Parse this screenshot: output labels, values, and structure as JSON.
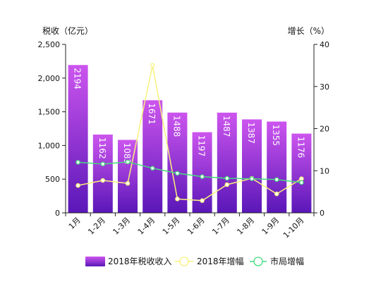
{
  "chart_data": {
    "type": "bar",
    "categories": [
      "1月",
      "1-2月",
      "1-3月",
      "1-4月",
      "1-5月",
      "1-6月",
      "1-7月",
      "1-8月",
      "1-9月",
      "1-10月"
    ],
    "series": [
      {
        "name": "2018年税收收入",
        "type": "bar",
        "axis": "left",
        "values": [
          2194,
          1162,
          1083,
          1671,
          1488,
          1197,
          1487,
          1387,
          1355,
          1176
        ]
      },
      {
        "name": "2018年增幅",
        "type": "line",
        "axis": "right",
        "values": [
          6.5,
          7.7,
          7.0,
          35.0,
          3.3,
          2.9,
          6.7,
          8.2,
          4.5,
          8.1
        ]
      },
      {
        "name": "市局增幅",
        "type": "line",
        "axis": "right",
        "values": [
          12.0,
          11.6,
          12.1,
          10.6,
          9.4,
          8.6,
          8.2,
          8.1,
          7.9,
          7.2
        ]
      }
    ],
    "y_left": {
      "label": "税收（亿元）",
      "ylim": [
        0,
        2500
      ],
      "ticks": [
        "0",
        "500",
        "1,000",
        "1,500",
        "2,000",
        "2,500"
      ]
    },
    "y_right": {
      "label": "增长（%）",
      "ylim": [
        0,
        40
      ],
      "ticks": [
        "0",
        "10",
        "20",
        "30",
        "40"
      ]
    },
    "grid": false,
    "legend": "bottom",
    "colors": {
      "bar_top": "#cc55ee",
      "bar_bottom": "#5a17b8",
      "line_2018": "#f7f17a",
      "line_city": "#46d97f",
      "axis": "#222222"
    }
  }
}
